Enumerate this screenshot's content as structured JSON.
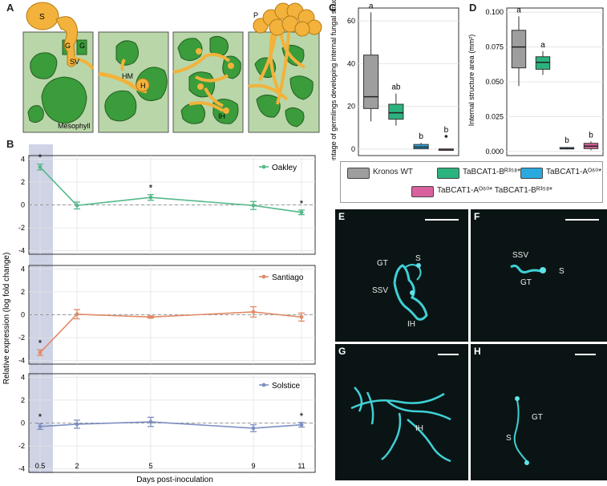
{
  "panel_letters": {
    "A": "A",
    "B": "B",
    "C": "C",
    "D": "D",
    "E": "E",
    "F": "F",
    "G": "G",
    "H": "H"
  },
  "panelA": {
    "labels": {
      "S": "S",
      "G1": "G",
      "G2": "G",
      "SV": "SV",
      "HM": "HM",
      "H": "H",
      "IH": "IH",
      "P": "P",
      "mesophyll": "Mesophyll"
    }
  },
  "panelB": {
    "ylabel": "Relative expression (log fold change)",
    "xlabel": "Days post-inoculation",
    "x_ticks": [
      "0.5",
      "2",
      "5",
      "9",
      "11"
    ],
    "y_ticks": [
      "-4",
      "-2",
      "0",
      "2",
      "4"
    ],
    "star": "*"
  },
  "panelC": {
    "ylabel": "Percentage of germlings developing internal fungal structures",
    "letters": [
      "a",
      "ab",
      "b",
      "b"
    ]
  },
  "panelD": {
    "ylabel": "Internal structure area (mm²)",
    "letters": [
      "a",
      "a",
      "b",
      "b"
    ]
  },
  "legend": {
    "items": [
      {
        "label": "Kronos WT",
        "color": "#9e9e9e"
      },
      {
        "label": "TaBCAT1-Bᴿ³⁵⁸*",
        "color": "#2bb37f"
      },
      {
        "label": "TaBCAT1-Aᴼ⁶⁰*",
        "color": "#2aa9df"
      },
      {
        "label": "TaBCAT1-Aᴼ⁶⁰* TaBCAT1-Bᴿ³⁵⁸*",
        "color": "#d9629e"
      }
    ]
  },
  "micrographs": {
    "E": {
      "GT": "GT",
      "S": "S",
      "SSV": "SSV",
      "IH": "IH"
    },
    "F": {
      "SSV": "SSV",
      "S": "S",
      "GT": "GT"
    },
    "G": {
      "IH": "IH"
    },
    "H": {
      "GT": "GT",
      "S": "S"
    }
  },
  "colors": {
    "fungus": "#f2b23b",
    "cell_green": "#3a9c3a",
    "cell_bg": "#b9d6a8",
    "shade": "#c6cbe0"
  },
  "chart_data": [
    {
      "type": "line",
      "title": "",
      "xlabel": "Days post-inoculation",
      "ylabel": "Relative expression (log fold change)",
      "x": [
        0.5,
        2,
        5,
        9,
        11
      ],
      "ylim": [
        -4.3,
        4.3
      ],
      "series": [
        {
          "name": "Oakley",
          "color": "#55b88a",
          "values": [
            3.3,
            -0.05,
            0.65,
            -0.05,
            -0.65
          ],
          "err": [
            0.25,
            0.3,
            0.25,
            0.35,
            0.2
          ],
          "sig": [
            true,
            false,
            true,
            false,
            true
          ]
        },
        {
          "name": "Santiago",
          "color": "#e08a68",
          "values": [
            -3.3,
            0.05,
            -0.2,
            0.25,
            -0.2
          ],
          "err": [
            0.25,
            0.4,
            0.1,
            0.45,
            0.35
          ],
          "sig": [
            true,
            false,
            false,
            false,
            false
          ]
        },
        {
          "name": "Solstice",
          "color": "#7d8fc2",
          "values": [
            -0.3,
            -0.1,
            0.1,
            -0.45,
            -0.15
          ],
          "err": [
            0.25,
            0.35,
            0.4,
            0.3,
            0.2
          ],
          "sig": [
            true,
            false,
            false,
            false,
            true
          ]
        }
      ],
      "highlight_x": 0.5
    },
    {
      "type": "box",
      "ylabel": "Percentage of germlings developing internal fungal structures",
      "ylim": [
        -3,
        66
      ],
      "y_ticks": [
        0,
        20,
        40,
        60
      ],
      "categories": [
        "Kronos WT",
        "TaBCAT1-Bᴿ³⁵⁸*",
        "TaBCAT1-Aᴼ⁶⁰*",
        "TaBCAT1-Aᴼ⁶⁰* TaBCAT1-Bᴿ³⁵⁸*"
      ],
      "boxes": [
        {
          "min": 13,
          "q1": 19,
          "median": 24.5,
          "q3": 44,
          "max": 64,
          "letter": "a",
          "color": "#9e9e9e"
        },
        {
          "min": 11,
          "q1": 14,
          "median": 17,
          "q3": 21,
          "max": 26,
          "letter": "ab",
          "color": "#2bb37f"
        },
        {
          "min": 0,
          "q1": 0.2,
          "median": 1,
          "q3": 2.2,
          "max": 3,
          "letter": "b",
          "color": "#2aa9df"
        },
        {
          "min": 0,
          "q1": 0,
          "median": 0,
          "q3": 0,
          "max": 0,
          "letter": "b",
          "color": "#d9629e",
          "outliers": [
            6
          ]
        }
      ]
    },
    {
      "type": "box",
      "ylabel": "Internal structure area (mm²)",
      "ylim": [
        -0.003,
        0.103
      ],
      "y_ticks": [
        0.0,
        0.025,
        0.05,
        0.075,
        0.1
      ],
      "categories": [
        "Kronos WT",
        "TaBCAT1-Bᴿ³⁵⁸*",
        "TaBCAT1-Aᴼ⁶⁰*",
        "TaBCAT1-Aᴼ⁶⁰* TaBCAT1-Bᴿ³⁵⁸*"
      ],
      "boxes": [
        {
          "min": 0.047,
          "q1": 0.06,
          "median": 0.075,
          "q3": 0.087,
          "max": 0.097,
          "letter": "a",
          "color": "#9e9e9e"
        },
        {
          "min": 0.055,
          "q1": 0.059,
          "median": 0.064,
          "q3": 0.068,
          "max": 0.072,
          "letter": "a",
          "color": "#2bb37f"
        },
        {
          "min": 0.0015,
          "q1": 0.0018,
          "median": 0.002,
          "q3": 0.0028,
          "max": 0.0032,
          "letter": "b",
          "color": "#2aa9df"
        },
        {
          "min": 0.0008,
          "q1": 0.002,
          "median": 0.0038,
          "q3": 0.0058,
          "max": 0.0072,
          "letter": "b",
          "color": "#d9629e"
        }
      ]
    }
  ]
}
